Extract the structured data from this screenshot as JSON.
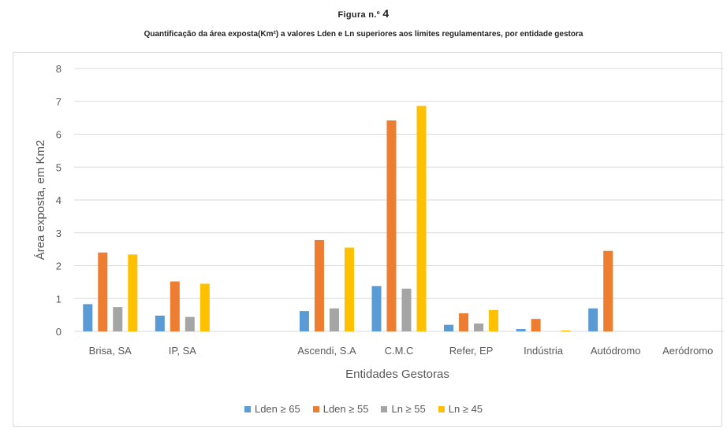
{
  "figure": {
    "label": "Figura n.º",
    "number": "4",
    "title": "Quantificação da área exposta(Km²) a valores Lden e Ln superiores aos limites regulamentares, por entidade gestora"
  },
  "chart_data": {
    "type": "bar",
    "title": "Quantificação da área exposta(Km²) a valores Lden e Ln superiores aos limites regulamentares, por entidade gestora",
    "xlabel": "Entidades Gestoras",
    "ylabel": "Área exposta, em Km2",
    "ylim": [
      0,
      8
    ],
    "yticks": [
      "0",
      "1",
      "2",
      "3",
      "4",
      "5",
      "6",
      "7",
      "8"
    ],
    "grid": true,
    "legend_position": "bottom",
    "categories": [
      "Brisa, SA",
      "IP, SA",
      "",
      "Ascendi, S.A",
      "C.M.C",
      "Refer, EP",
      "Indústria",
      "Autódromo",
      "Aeródromo"
    ],
    "series": [
      {
        "name": "Lden ≥ 65",
        "color": "#5b9bd5",
        "values": [
          0.83,
          0.48,
          null,
          0.62,
          1.38,
          0.2,
          0.07,
          0.7,
          0
        ]
      },
      {
        "name": "Lden ≥ 55",
        "color": "#ed7d31",
        "values": [
          2.4,
          1.52,
          null,
          2.78,
          6.42,
          0.55,
          0.38,
          2.45,
          0
        ]
      },
      {
        "name": "Ln ≥ 55",
        "color": "#a5a5a5",
        "values": [
          0.74,
          0.44,
          null,
          0.7,
          1.3,
          0.24,
          0,
          0,
          0
        ]
      },
      {
        "name": "Ln ≥ 45",
        "color": "#ffc000",
        "values": [
          2.34,
          1.45,
          null,
          2.55,
          6.86,
          0.65,
          0.03,
          0,
          0
        ]
      }
    ]
  }
}
